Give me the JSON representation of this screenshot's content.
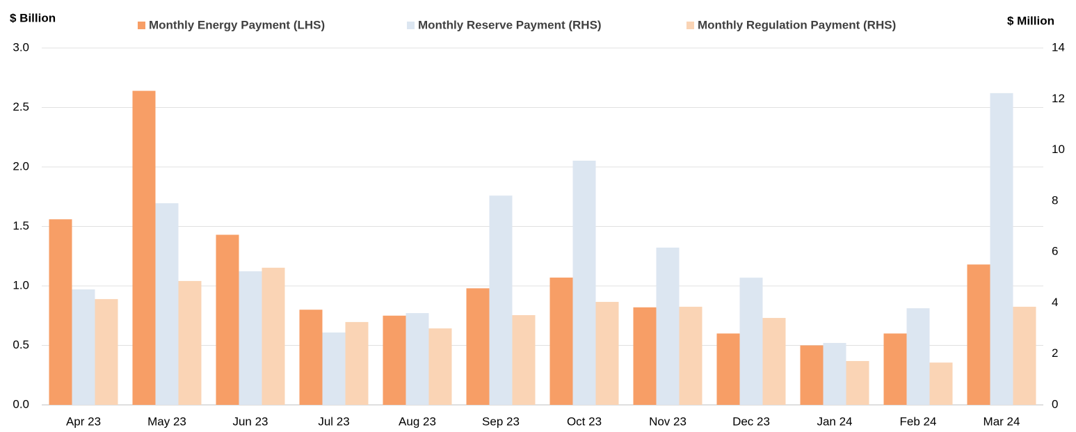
{
  "chart_data": {
    "type": "bar",
    "y_label": "$ Billion",
    "y2_label": "$ Million",
    "categories": [
      "Apr 23",
      "May 23",
      "Jun 23",
      "Jul 23",
      "Aug 23",
      "Sep 23",
      "Oct 23",
      "Nov 23",
      "Dec 23",
      "Jan 24",
      "Feb 24",
      "Mar 24"
    ],
    "series": [
      {
        "name": "Monthly Energy Payment (LHS)",
        "color": "#f79e66",
        "values": [
          1.56,
          2.64,
          1.43,
          0.8,
          0.75,
          0.98,
          1.07,
          0.82,
          0.6,
          0.5,
          0.6,
          1.18
        ]
      },
      {
        "name": "Monthly Reserve Payment (RHS)",
        "color": "#dce6f1",
        "axis": "y2",
        "values": [
          4.53,
          7.91,
          5.24,
          2.84,
          3.6,
          8.21,
          9.58,
          6.17,
          4.99,
          2.43,
          3.79,
          12.23
        ]
      },
      {
        "name": "Monthly Regulation Payment (RHS)",
        "color": "#fad4b5",
        "axis": "y2",
        "values": [
          4.15,
          4.86,
          5.38,
          3.25,
          3.0,
          3.52,
          4.04,
          3.85,
          3.41,
          1.72,
          1.66,
          3.85
        ]
      }
    ],
    "ylim": [
      0,
      3
    ],
    "yticks": [
      {
        "value": 0,
        "label": "0.0"
      },
      {
        "value": 0.5,
        "label": "0.5"
      },
      {
        "value": 1,
        "label": "1.0"
      },
      {
        "value": 1.5,
        "label": "1.5"
      },
      {
        "value": 2,
        "label": "2.0"
      },
      {
        "value": 2.5,
        "label": "2.5"
      },
      {
        "value": 3,
        "label": "3.0"
      }
    ],
    "y2lim": [
      0,
      14
    ],
    "y2ticks": [
      0,
      2,
      4,
      6,
      8,
      10,
      12,
      14
    ],
    "grid": true
  }
}
